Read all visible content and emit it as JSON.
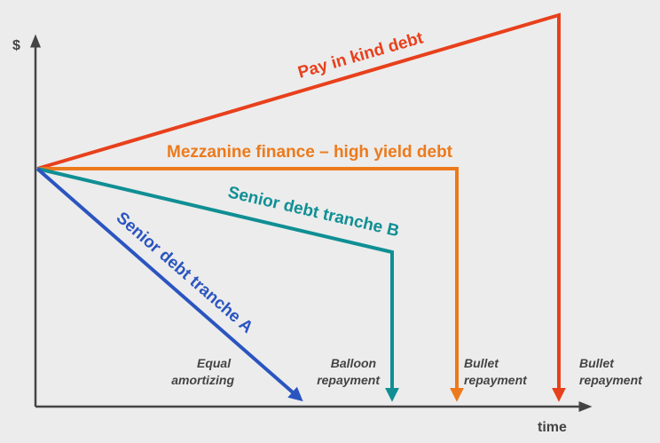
{
  "axes": {
    "y_label": "$",
    "x_label": "time"
  },
  "colors": {
    "axis": "#444444",
    "pik": "#e8401c",
    "mezzanine": "#ec7a1c",
    "tranche_b": "#0f8f94",
    "tranche_a": "#2a55c0",
    "background": "#ececec"
  },
  "lines": {
    "pik": {
      "label": "Pay in kind debt"
    },
    "mezzanine": {
      "label": "Mezzanine finance – high yield debt"
    },
    "tranche_b": {
      "label": "Senior debt tranche B"
    },
    "tranche_a": {
      "label": "Senior debt tranche A"
    }
  },
  "notes": {
    "equal": [
      "Equal",
      "amortizing"
    ],
    "balloon": [
      "Balloon",
      "repayment"
    ],
    "bullet_mezz": [
      "Bullet",
      "repayment"
    ],
    "bullet_pik": [
      "Bullet",
      "repayment"
    ]
  }
}
